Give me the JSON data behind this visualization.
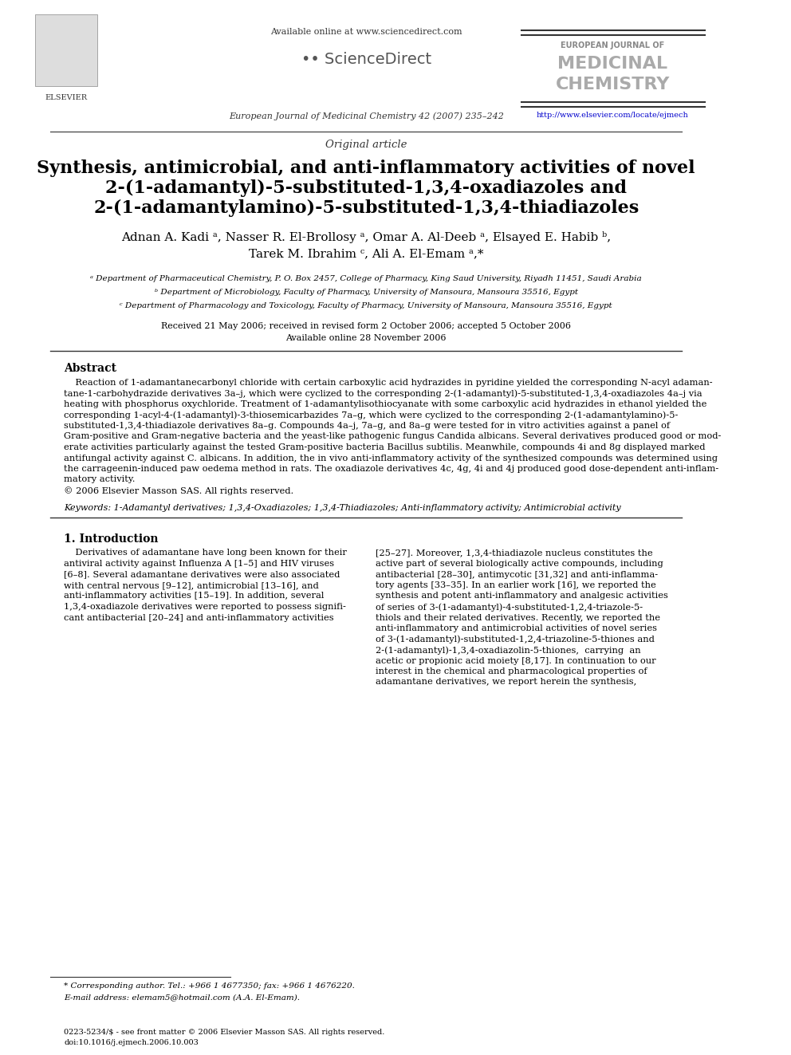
{
  "header_line1": "Available online at www.sciencedirect.com",
  "journal_name_line1": "EUROPEAN JOURNAL OF",
  "journal_name_line2": "MEDICINAL",
  "journal_name_line3": "CHEMISTRY",
  "journal_url": "http://www.elsevier.com/locate/ejmech",
  "journal_ref": "European Journal of Medicinal Chemistry 42 (2007) 235–242",
  "article_type": "Original article",
  "title_line1": "Synthesis, antimicrobial, and anti-inflammatory activities of novel",
  "title_line2": "2-(1-adamantyl)-5-substituted-1,3,4-oxadiazoles and",
  "title_line3": "2-(1-adamantylamino)-5-substituted-1,3,4-thiadiazoles",
  "authors": "Adnan A. Kadi ᵃ, Nasser R. El-Brollosy ᵃ, Omar A. Al-Deeb ᵃ, Elsayed E. Habib ᵇ,\nTarek M. Ibrahim ᶜ, Ali A. El-Emam ᵃ,*",
  "affil_a": "ᵃ Department of Pharmaceutical Chemistry, P. O. Box 2457, College of Pharmacy, King Saud University, Riyadh 11451, Saudi Arabia",
  "affil_b": "ᵇ Department of Microbiology, Faculty of Pharmacy, University of Mansoura, Mansoura 35516, Egypt",
  "affil_c": "ᶜ Department of Pharmacology and Toxicology, Faculty of Pharmacy, University of Mansoura, Mansoura 35516, Egypt",
  "received": "Received 21 May 2006; received in revised form 2 October 2006; accepted 5 October 2006",
  "available": "Available online 28 November 2006",
  "abstract_title": "Abstract",
  "abstract_text": "    Reaction of 1-adamantanecarbonyl chloride with certain carboxylic acid hydrazides in pyridine yielded the corresponding N-acyl adamantane-1-carbohydrazide derivatives 3a–j, which were cyclized to the corresponding 2-(1-adamantyl)-5-substituted-1,3,4-oxadiazoles 4a–j via heating with phosphorus oxychloride. Treatment of 1-adamantylisothiocyanate with some carboxylic acid hydrazides in ethanol yielded the corresponding 1-acyl-4-(1-adamantyl)-3-thiosemicarbazides 7a–g, which were cyclized to the corresponding 2-(1-adamantylamino)-5-substituted-1,3,4-thiadiazole derivatives 8a–g. Compounds 4a–j, 7a–g, and 8a–g were tested for in vitro activities against a panel of Gram-positive and Gram-negative bacteria and the yeast-like pathogenic fungus Candida albicans. Several derivatives produced good or moderate activities particularly against the tested Gram-positive bacteria Bacillus subtilis. Meanwhile, compounds 4i and 8g displayed marked antifungal activity against C. albicans. In addition, the in vivo anti-inflammatory activity of the synthesized compounds was determined using the carrageenin-induced paw oedema method in rats. The oxadiazole derivatives 4c, 4g, 4i and 4j produced good dose-dependent anti-inflammatory activity.\n© 2006 Elsevier Masson SAS. All rights reserved.",
  "keywords": "Keywords: 1-Adamantyl derivatives; 1,3,4-Oxadiazoles; 1,3,4-Thiadiazoles; Anti-inflammatory activity; Antimicrobial activity",
  "intro_title": "1. Introduction",
  "intro_col1": "    Derivatives of adamantane have long been known for their antiviral activity against Influenza A [1–5] and HIV viruses [6–8]. Several adamantane derivatives were also associated with central nervous [9–12], antimicrobial [13–16], and anti-inflammatory activities [15–19]. In addition, several 1,3,4-oxadiazole derivatives were reported to possess significant antibacterial [20–24] and anti-inflammatory activities",
  "intro_col2": "[25–27]. Moreover, 1,3,4-thiadiazole nucleus constitutes the active part of several biologically active compounds, including antibacterial [28–30], antimycotic [31,32] and anti-inflammatory agents [33–35]. In an earlier work [16], we reported the synthesis and potent anti-inflammatory and analgesic activities of series of 3-(1-adamantyl)-4-substituted-1,2,4-triazole-5-thiols and their related derivatives. Recently, we reported the anti-inflammatory and antimicrobial activities of novel series of 3-(1-adamantyl)-substituted-1,2,4-triazoline-5-thiones and 2-(1-adamantyl)-1,3,4-oxadiazolin-5-thiones,  carrying  an acetic or propionic acid moiety [8,17]. In continuation to our interest in the chemical and pharmacological properties of adamantane derivatives, we report herein the synthesis,",
  "footnote1": "* Corresponding author. Tel.: +966 1 4677350; fax: +966 1 4676220.",
  "footnote2": "E-mail address: elemam5@hotmail.com (A.A. El-Emam).",
  "footer": "0223-5234/$ - see front matter © 2006 Elsevier Masson SAS. All rights reserved.\ndoi:10.1016/j.ejmech.2006.10.003",
  "bg_color": "#ffffff",
  "text_color": "#000000",
  "title_color": "#000000",
  "journal_color_light": "#aaaaaa",
  "link_color": "#0000cc",
  "abstract_italic_phrases": [
    "via",
    "in vitro",
    "Candida albicans",
    "Bacillus subtilis",
    "C. albicans",
    "in vivo"
  ],
  "separator_color": "#000000"
}
